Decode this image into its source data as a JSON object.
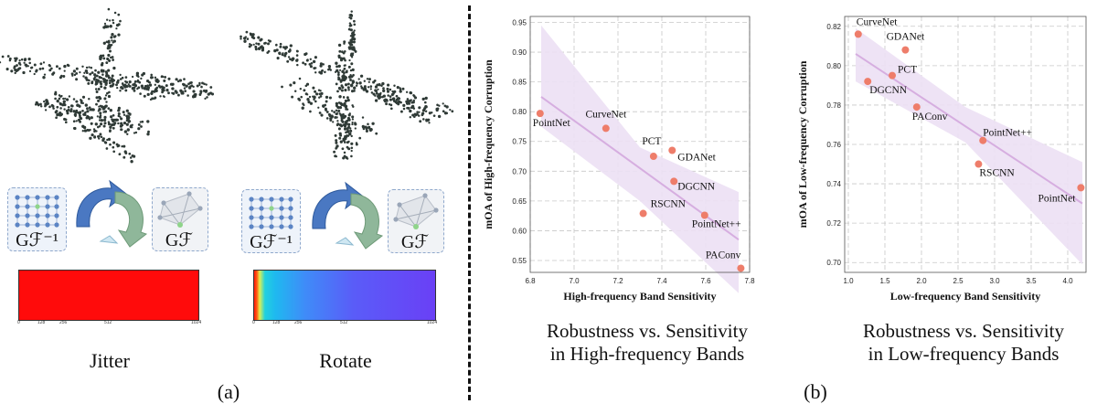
{
  "panel_a": {
    "label": "(a)",
    "columns": [
      {
        "name": "Jitter",
        "inverse_label": "Gℱ⁻¹",
        "forward_label": "Gℱ",
        "bar_ticks": [
          "0",
          "128",
          "256",
          "512",
          "1024"
        ]
      },
      {
        "name": "Rotate",
        "inverse_label": "Gℱ⁻¹",
        "forward_label": "Gℱ",
        "bar_ticks": [
          "0",
          "128",
          "256",
          "512",
          "1024"
        ]
      }
    ]
  },
  "panel_b": {
    "label": "(b)",
    "captions": [
      {
        "line1": "Robustness vs. Sensitivity",
        "line2": "in High-frequency Bands"
      },
      {
        "line1": "Robustness vs. Sensitivity",
        "line2": "in Low-frequency Bands"
      }
    ]
  },
  "colors": {
    "point": "#ee7d6a",
    "fit": "#d6aee0",
    "band": "#ece0f4",
    "grid": "#c8c8c8"
  },
  "chart_data": [
    {
      "type": "scatter",
      "title": "",
      "xlabel": "High-frequency Band Sensitivity",
      "ylabel": "mOA of High-frequency Corruption",
      "xlim": [
        6.8,
        7.8
      ],
      "ylim": [
        0.53,
        0.96
      ],
      "xticks": [
        6.8,
        7.0,
        7.2,
        7.4,
        7.6,
        7.8
      ],
      "xtick_labels": [
        "6.8",
        "7.0",
        "7.2",
        "7.4",
        "7.6",
        "7.8"
      ],
      "yticks": [
        0.55,
        0.6,
        0.65,
        0.7,
        0.75,
        0.8,
        0.85,
        0.9,
        0.95
      ],
      "ytick_labels": [
        "0.55",
        "0.60",
        "0.65",
        "0.70",
        "0.75",
        "0.80",
        "0.85",
        "0.90",
        "0.95"
      ],
      "fit_line": [
        [
          6.85,
          0.825
        ],
        [
          7.75,
          0.585
        ]
      ],
      "confidence_band": {
        "upper": [
          [
            6.85,
            0.945
          ],
          [
            7.3,
            0.74
          ],
          [
            7.75,
            0.665
          ]
        ],
        "lower": [
          [
            6.85,
            0.775
          ],
          [
            7.3,
            0.65
          ],
          [
            7.75,
            0.495
          ]
        ]
      },
      "points": [
        {
          "name": "PointNet",
          "x": 6.845,
          "y": 0.797,
          "anchor": "start",
          "dx": -8,
          "dy": 14
        },
        {
          "name": "CurveNet",
          "x": 7.145,
          "y": 0.772,
          "anchor": "middle",
          "dx": 0,
          "dy": -12
        },
        {
          "name": "PCT",
          "x": 7.362,
          "y": 0.725,
          "anchor": "middle",
          "dx": -2,
          "dy": -13
        },
        {
          "name": "GDANet",
          "x": 7.447,
          "y": 0.735,
          "anchor": "start",
          "dx": 6,
          "dy": 11
        },
        {
          "name": "DGCNN",
          "x": 7.455,
          "y": 0.683,
          "anchor": "start",
          "dx": 4,
          "dy": 9
        },
        {
          "name": "RSCNN",
          "x": 7.315,
          "y": 0.629,
          "anchor": "start",
          "dx": 8,
          "dy": -7
        },
        {
          "name": "PointNet++",
          "x": 7.595,
          "y": 0.626,
          "anchor": "start",
          "dx": -14,
          "dy": 13
        },
        {
          "name": "PAConv",
          "x": 7.76,
          "y": 0.537,
          "anchor": "end",
          "dx": 0,
          "dy": -11
        }
      ]
    },
    {
      "type": "scatter",
      "title": "",
      "xlabel": "Low-frequency Band Sensitivity",
      "ylabel": "mOA of Low-frequency Corruption",
      "xlim": [
        0.95,
        4.25
      ],
      "ylim": [
        0.695,
        0.825
      ],
      "xticks": [
        1.0,
        1.5,
        2.0,
        2.5,
        3.0,
        3.5,
        4.0
      ],
      "xtick_labels": [
        "1.0",
        "1.5",
        "2.0",
        "2.5",
        "3.0",
        "3.5",
        "4.0"
      ],
      "yticks": [
        0.7,
        0.72,
        0.74,
        0.76,
        0.78,
        0.8,
        0.82
      ],
      "ytick_labels": [
        "0.70",
        "0.72",
        "0.74",
        "0.76",
        "0.78",
        "0.80",
        "0.82"
      ],
      "fit_line": [
        [
          1.1,
          0.806
        ],
        [
          4.2,
          0.73
        ]
      ],
      "confidence_band": {
        "upper": [
          [
            1.1,
            0.819
          ],
          [
            2.6,
            0.779
          ],
          [
            4.2,
            0.751
          ]
        ],
        "lower": [
          [
            1.1,
            0.792
          ],
          [
            2.6,
            0.761
          ],
          [
            4.2,
            0.699
          ]
        ]
      },
      "points": [
        {
          "name": "CurveNet",
          "x": 1.135,
          "y": 0.816,
          "anchor": "start",
          "dx": -2,
          "dy": -10
        },
        {
          "name": "GDANet",
          "x": 1.78,
          "y": 0.808,
          "anchor": "middle",
          "dx": 0,
          "dy": -11
        },
        {
          "name": "PCT",
          "x": 1.6,
          "y": 0.795,
          "anchor": "start",
          "dx": 6,
          "dy": -3
        },
        {
          "name": "DGCNN",
          "x": 1.265,
          "y": 0.792,
          "anchor": "start",
          "dx": 2,
          "dy": 13
        },
        {
          "name": "PAConv",
          "x": 1.935,
          "y": 0.779,
          "anchor": "start",
          "dx": -5,
          "dy": 14
        },
        {
          "name": "PointNet++",
          "x": 2.84,
          "y": 0.762,
          "anchor": "start",
          "dx": 0,
          "dy": -5
        },
        {
          "name": "RSCNN",
          "x": 2.78,
          "y": 0.75,
          "anchor": "start",
          "dx": 1,
          "dy": 13
        },
        {
          "name": "PointNet",
          "x": 4.18,
          "y": 0.738,
          "anchor": "end",
          "dx": -6,
          "dy": 15
        }
      ]
    }
  ]
}
